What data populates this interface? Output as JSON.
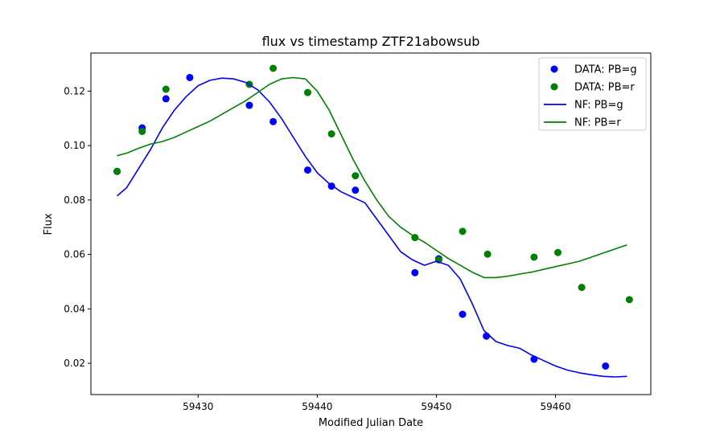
{
  "chart_data": {
    "type": "scatter",
    "title": "flux vs timestamp ZTF21abowsub",
    "xlabel": "Modified Julian Date",
    "ylabel": "Flux",
    "xlim": [
      59421.0,
      59468.0
    ],
    "ylim": [
      0.0085,
      0.134
    ],
    "xticks": [
      59430,
      59440,
      59450,
      59460
    ],
    "xtick_labels": [
      "59430",
      "59440",
      "59450",
      "59460"
    ],
    "yticks": [
      0.02,
      0.04,
      0.06,
      0.08,
      0.1,
      0.12
    ],
    "ytick_labels": [
      "0.02",
      "0.04",
      "0.06",
      "0.08",
      "0.10",
      "0.12"
    ],
    "grid": false,
    "legend_position": "top-right",
    "series": [
      {
        "name": "DATA: PB=g",
        "kind": "scatter",
        "color": "#0000ff",
        "x": [
          59423.2,
          59425.3,
          59427.3,
          59429.3,
          59434.3,
          59436.3,
          59439.2,
          59441.2,
          59443.2,
          59448.2,
          59450.2,
          59452.2,
          59454.2,
          59458.2,
          59464.2
        ],
        "y": [
          0.0905,
          0.1065,
          0.1172,
          0.125,
          0.1148,
          0.1088,
          0.091,
          0.0851,
          0.0836,
          0.0533,
          0.0584,
          0.038,
          0.03,
          0.0215,
          0.019
        ]
      },
      {
        "name": "DATA: PB=r",
        "kind": "scatter",
        "color": "#008000",
        "x": [
          59423.2,
          59425.3,
          59427.3,
          59434.3,
          59436.3,
          59439.2,
          59441.2,
          59443.2,
          59448.2,
          59450.2,
          59452.2,
          59454.3,
          59458.2,
          59460.2,
          59462.2,
          59466.2
        ],
        "y": [
          0.0905,
          0.1052,
          0.1207,
          0.1225,
          0.1284,
          0.1195,
          0.1043,
          0.0889,
          0.0662,
          0.058,
          0.0685,
          0.0601,
          0.059,
          0.0607,
          0.0479,
          0.0434
        ]
      },
      {
        "name": "NF: PB=g",
        "kind": "line",
        "color": "#0000ff",
        "x": [
          59423.2,
          59424.0,
          59425.0,
          59426.0,
          59427.0,
          59428.0,
          59429.0,
          59430.0,
          59431.0,
          59432.0,
          59433.0,
          59434.0,
          59435.0,
          59436.0,
          59437.0,
          59438.0,
          59439.0,
          59440.0,
          59441.0,
          59442.0,
          59443.0,
          59444.0,
          59445.0,
          59446.0,
          59447.0,
          59448.0,
          59449.0,
          59450.0,
          59451.0,
          59452.0,
          59453.0,
          59454.0,
          59455.0,
          59456.0,
          59457.0,
          59458.0,
          59459.0,
          59460.0,
          59461.0,
          59462.0,
          59463.0,
          59464.0,
          59465.0,
          59466.0
        ],
        "y": [
          0.0815,
          0.0845,
          0.0915,
          0.0985,
          0.1065,
          0.113,
          0.118,
          0.122,
          0.124,
          0.1248,
          0.1245,
          0.1232,
          0.1205,
          0.116,
          0.11,
          0.103,
          0.096,
          0.09,
          0.086,
          0.083,
          0.081,
          0.079,
          0.073,
          0.067,
          0.061,
          0.058,
          0.056,
          0.0575,
          0.056,
          0.051,
          0.042,
          0.032,
          0.028,
          0.0265,
          0.0255,
          0.023,
          0.021,
          0.019,
          0.0175,
          0.0165,
          0.0158,
          0.0152,
          0.015,
          0.0152
        ]
      },
      {
        "name": "NF: PB=r",
        "kind": "line",
        "color": "#008000",
        "x": [
          59423.2,
          59424.0,
          59425.0,
          59426.0,
          59427.0,
          59428.0,
          59429.0,
          59430.0,
          59431.0,
          59432.0,
          59433.0,
          59434.0,
          59435.0,
          59436.0,
          59437.0,
          59438.0,
          59439.0,
          59440.0,
          59441.0,
          59442.0,
          59443.0,
          59444.0,
          59445.0,
          59446.0,
          59447.0,
          59448.0,
          59449.0,
          59450.0,
          59451.0,
          59452.0,
          59453.0,
          59454.0,
          59455.0,
          59456.0,
          59457.0,
          59458.0,
          59459.0,
          59460.0,
          59461.0,
          59462.0,
          59463.0,
          59464.0,
          59465.0,
          59466.0
        ],
        "y": [
          0.0963,
          0.0972,
          0.099,
          0.1005,
          0.1015,
          0.103,
          0.105,
          0.107,
          0.109,
          0.1115,
          0.114,
          0.1165,
          0.1195,
          0.1225,
          0.1245,
          0.125,
          0.1245,
          0.12,
          0.113,
          0.104,
          0.095,
          0.087,
          0.08,
          0.074,
          0.07,
          0.067,
          0.0645,
          0.0615,
          0.0585,
          0.056,
          0.0535,
          0.0515,
          0.0515,
          0.052,
          0.0528,
          0.0535,
          0.0545,
          0.0555,
          0.0565,
          0.0575,
          0.059,
          0.0605,
          0.062,
          0.0635
        ]
      }
    ]
  }
}
